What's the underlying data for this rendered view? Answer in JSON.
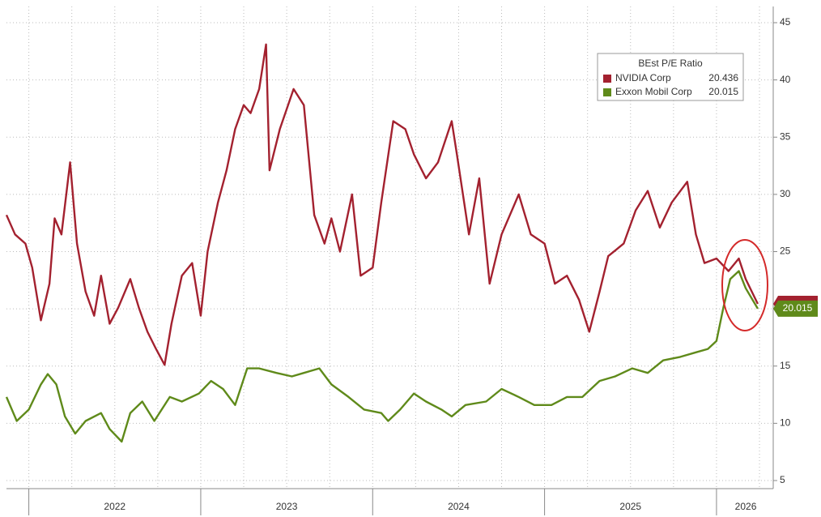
{
  "chart_data": {
    "type": "line",
    "legend_title": "BEst P/E Ratio",
    "series": [
      {
        "name": "NVIDIA Corp",
        "color": "#a3212f",
        "x": [
          2021.87,
          2021.92,
          2021.98,
          2022.02,
          2022.07,
          2022.12,
          2022.15,
          2022.19,
          2022.24,
          2022.28,
          2022.33,
          2022.38,
          2022.42,
          2022.47,
          2022.52,
          2022.59,
          2022.64,
          2022.69,
          2022.74,
          2022.79,
          2022.83,
          2022.89,
          2022.95,
          2023.0,
          2023.04,
          2023.1,
          2023.15,
          2023.2,
          2023.25,
          2023.29,
          2023.34,
          2023.38,
          2023.4,
          2023.46,
          2023.54,
          2023.6,
          2023.66,
          2023.72,
          2023.76,
          2023.81,
          2023.88,
          2023.93,
          2024.0,
          2024.05,
          2024.12,
          2024.19,
          2024.24,
          2024.31,
          2024.38,
          2024.46,
          2024.49,
          2024.56,
          2024.62,
          2024.68,
          2024.75,
          2024.85,
          2024.92,
          2025.0,
          2025.06,
          2025.13,
          2025.2,
          2025.26,
          2025.32,
          2025.37,
          2025.46,
          2025.53,
          2025.6,
          2025.67,
          2025.74,
          2025.83,
          2025.88,
          2025.93,
          2026.0,
          2026.07,
          2026.13,
          2026.17,
          2026.24
        ],
        "values": [
          28.2,
          26.5,
          25.7,
          23.6,
          19.0,
          22.2,
          27.9,
          26.5,
          32.8,
          25.7,
          21.5,
          19.4,
          22.9,
          18.7,
          20.1,
          22.6,
          20.1,
          18.0,
          16.5,
          15.1,
          18.7,
          22.9,
          24.0,
          19.4,
          25.0,
          29.3,
          32.1,
          35.7,
          37.8,
          37.1,
          39.2,
          43.1,
          32.1,
          35.7,
          39.2,
          37.8,
          28.2,
          25.7,
          27.9,
          25.0,
          30.0,
          22.9,
          23.6,
          29.3,
          36.4,
          35.7,
          33.5,
          31.4,
          32.8,
          36.4,
          33.5,
          26.5,
          31.4,
          22.2,
          26.5,
          30.0,
          26.5,
          25.7,
          22.2,
          22.9,
          20.8,
          18.0,
          21.5,
          24.6,
          25.7,
          28.6,
          30.3,
          27.1,
          29.3,
          31.1,
          26.5,
          24.0,
          24.4,
          23.3,
          24.4,
          22.6,
          20.436
        ]
      },
      {
        "name": "Exxon Mobil Corp",
        "color": "#5f8a1a",
        "x": [
          2021.87,
          2021.93,
          2022.0,
          2022.07,
          2022.11,
          2022.16,
          2022.21,
          2022.27,
          2022.33,
          2022.42,
          2022.47,
          2022.54,
          2022.59,
          2022.66,
          2022.73,
          2022.82,
          2022.89,
          2022.99,
          2023.06,
          2023.13,
          2023.2,
          2023.27,
          2023.34,
          2023.44,
          2023.53,
          2023.6,
          2023.69,
          2023.76,
          2023.86,
          2023.95,
          2024.05,
          2024.09,
          2024.16,
          2024.24,
          2024.31,
          2024.4,
          2024.46,
          2024.54,
          2024.66,
          2024.75,
          2024.85,
          2024.94,
          2025.04,
          2025.13,
          2025.22,
          2025.32,
          2025.41,
          2025.51,
          2025.6,
          2025.69,
          2025.79,
          2025.88,
          2025.95,
          2026.0,
          2026.04,
          2026.08,
          2026.13,
          2026.17,
          2026.24
        ],
        "values": [
          12.3,
          10.2,
          11.2,
          13.4,
          14.3,
          13.4,
          10.6,
          9.1,
          10.2,
          10.9,
          9.5,
          8.4,
          10.9,
          11.9,
          10.2,
          12.3,
          11.9,
          12.6,
          13.7,
          13.0,
          11.6,
          14.8,
          14.8,
          14.4,
          14.1,
          14.4,
          14.8,
          13.4,
          12.3,
          11.2,
          10.9,
          10.2,
          11.2,
          12.6,
          11.9,
          11.2,
          10.6,
          11.6,
          11.9,
          13.0,
          12.3,
          11.6,
          11.6,
          12.3,
          12.3,
          13.7,
          14.1,
          14.8,
          14.4,
          15.5,
          15.8,
          16.2,
          16.5,
          17.2,
          20.1,
          22.6,
          23.3,
          21.8,
          20.015
        ]
      }
    ],
    "xlim": [
      2021.87,
      2026.33
    ],
    "xticks": [
      {
        "value": 2022.5,
        "label": "2022"
      },
      {
        "value": 2023.5,
        "label": "2023"
      },
      {
        "value": 2024.5,
        "label": "2024"
      },
      {
        "value": 2025.5,
        "label": "2025"
      },
      {
        "value": 2026.17,
        "label": "2026"
      }
    ],
    "ylim": [
      5,
      45
    ],
    "yticks": [
      5,
      10,
      15,
      20,
      25,
      30,
      35,
      40,
      45
    ],
    "grid": true
  }
}
